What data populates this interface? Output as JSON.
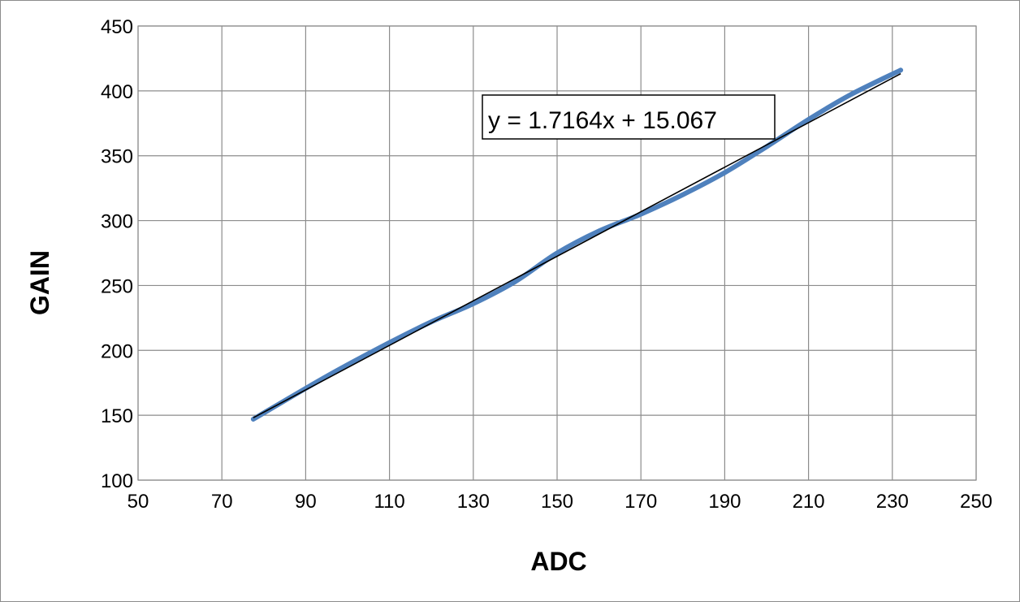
{
  "chart_data": {
    "type": "line",
    "xlabel": "ADC",
    "ylabel": "GAIN",
    "xlim": [
      50,
      250
    ],
    "ylim": [
      100,
      450
    ],
    "x_ticks": [
      50,
      70,
      90,
      110,
      130,
      150,
      170,
      190,
      210,
      230,
      250
    ],
    "y_ticks": [
      100,
      150,
      200,
      250,
      300,
      350,
      400,
      450
    ],
    "grid": true,
    "legend": "none",
    "series": [
      {
        "color": "#4f81bd",
        "x": [
          77.5,
          95,
          110,
          120,
          130,
          140,
          150,
          160,
          170,
          180,
          190,
          200,
          210,
          220,
          232
        ],
        "y": [
          147,
          180,
          206,
          222,
          236,
          253,
          275,
          292,
          305,
          320,
          337,
          357,
          378,
          397,
          416
        ]
      }
    ],
    "trendline": {
      "color": "#000000",
      "slope": 1.7164,
      "intercept": 15.067,
      "x_range": [
        77.5,
        232
      ],
      "equation_label": "y = 1.7164x + 15.067"
    }
  }
}
